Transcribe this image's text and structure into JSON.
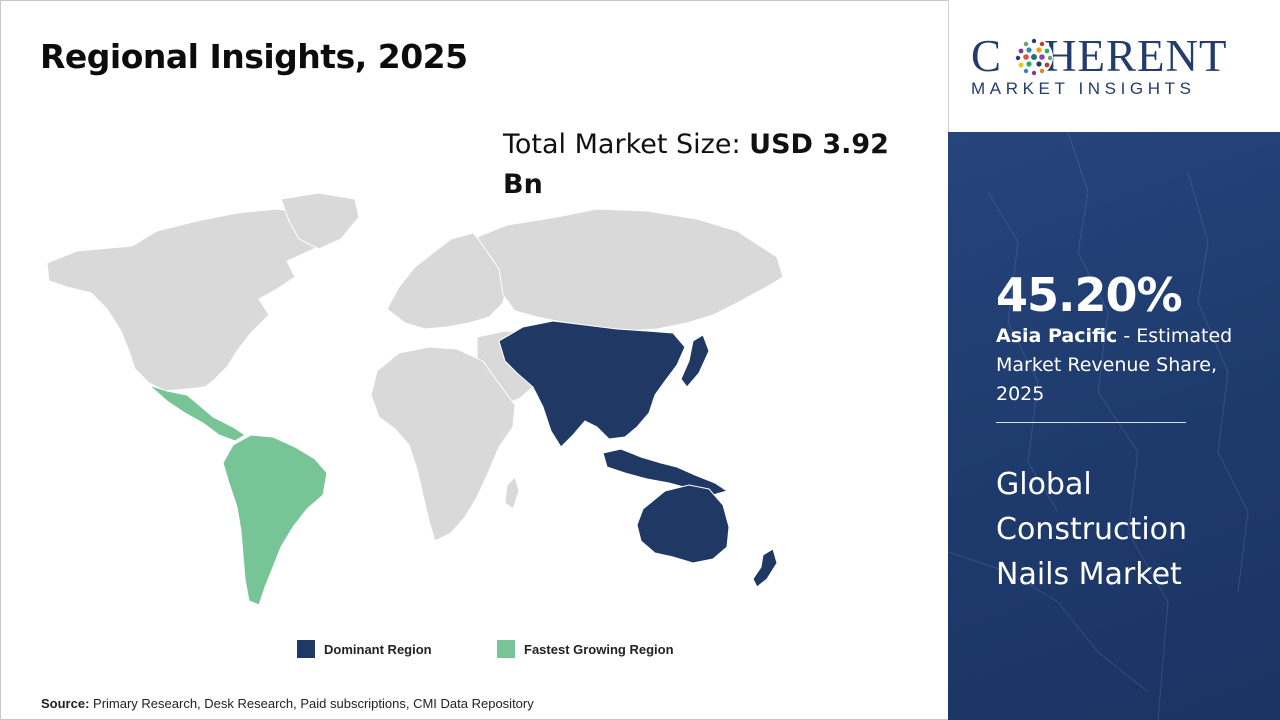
{
  "header": {
    "title": "Regional Insights, 2025"
  },
  "market_size": {
    "label": "Total Market Size:",
    "value": "USD 3.92 Bn"
  },
  "legend": {
    "dominant_label": "Dominant Region",
    "fastest_label": "Fastest Growing Region"
  },
  "source": {
    "label": "Source:",
    "text": "Primary Research, Desk Research, Paid subscriptions, CMI Data Repository"
  },
  "logo": {
    "word_left": "C",
    "word_right": "HERENT",
    "subtitle": "MARKET INSIGHTS"
  },
  "side_panel": {
    "share_value": "45.20%",
    "region": "Asia Pacific",
    "share_desc": " - Estimated Market Revenue Share, 2025",
    "market_name": "Global Construction Nails Market"
  },
  "colors": {
    "dominant": "#1f3864",
    "fastest": "#77c596",
    "other_land": "#d9d9d9",
    "panel": "#1f3c6f",
    "logo": "#233c6e"
  },
  "icons": {
    "logo_globe": "globe-dots-icon",
    "map": "world-map"
  }
}
